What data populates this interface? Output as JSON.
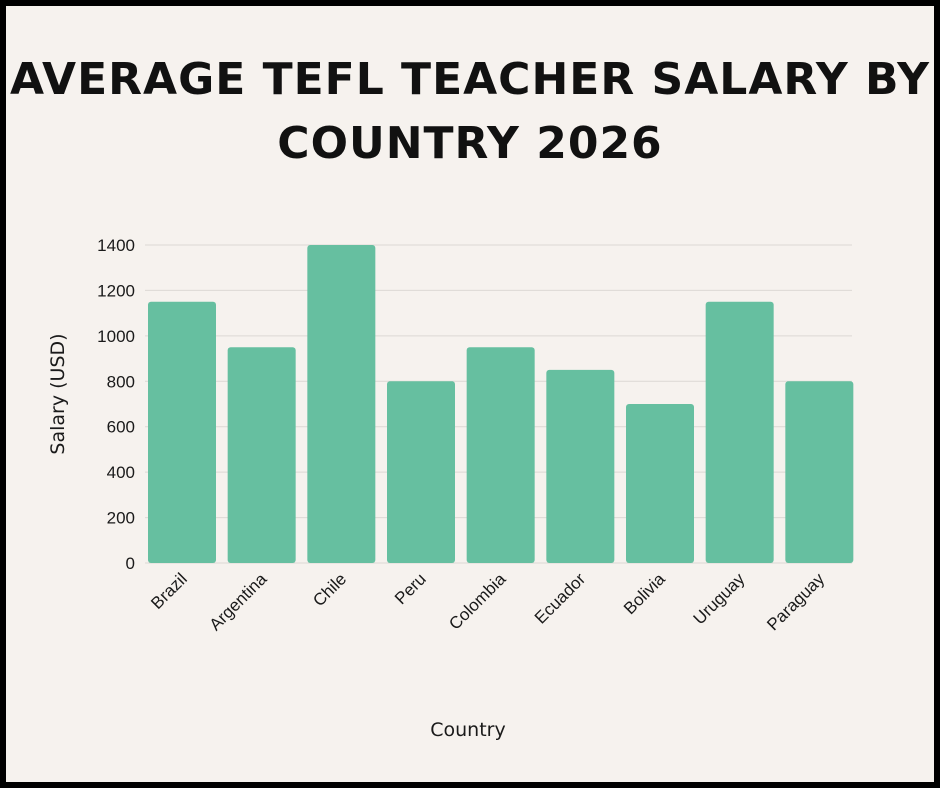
{
  "title": "AVERAGE TEFL TEACHER SALARY BY COUNTRY 2026",
  "colors": {
    "bar": "#66bfa0",
    "background": "#f6f2ee",
    "border": "#000000",
    "grid": "#dcd8d4"
  },
  "chart_data": {
    "type": "bar",
    "title": "AVERAGE TEFL TEACHER SALARY BY COUNTRY 2026",
    "xlabel": "Country",
    "ylabel": "Salary (USD)",
    "categories": [
      "Brazil",
      "Argentina",
      "Chile",
      "Peru",
      "Colombia",
      "Ecuador",
      "Bolivia",
      "Uruguay",
      "Paraguay"
    ],
    "values": [
      1150,
      950,
      1400,
      800,
      950,
      850,
      700,
      1150,
      800
    ],
    "ylim": [
      0,
      1400
    ],
    "yticks": [
      0,
      200,
      400,
      600,
      800,
      1000,
      1200,
      1400
    ],
    "grid": true,
    "legend": "none"
  }
}
